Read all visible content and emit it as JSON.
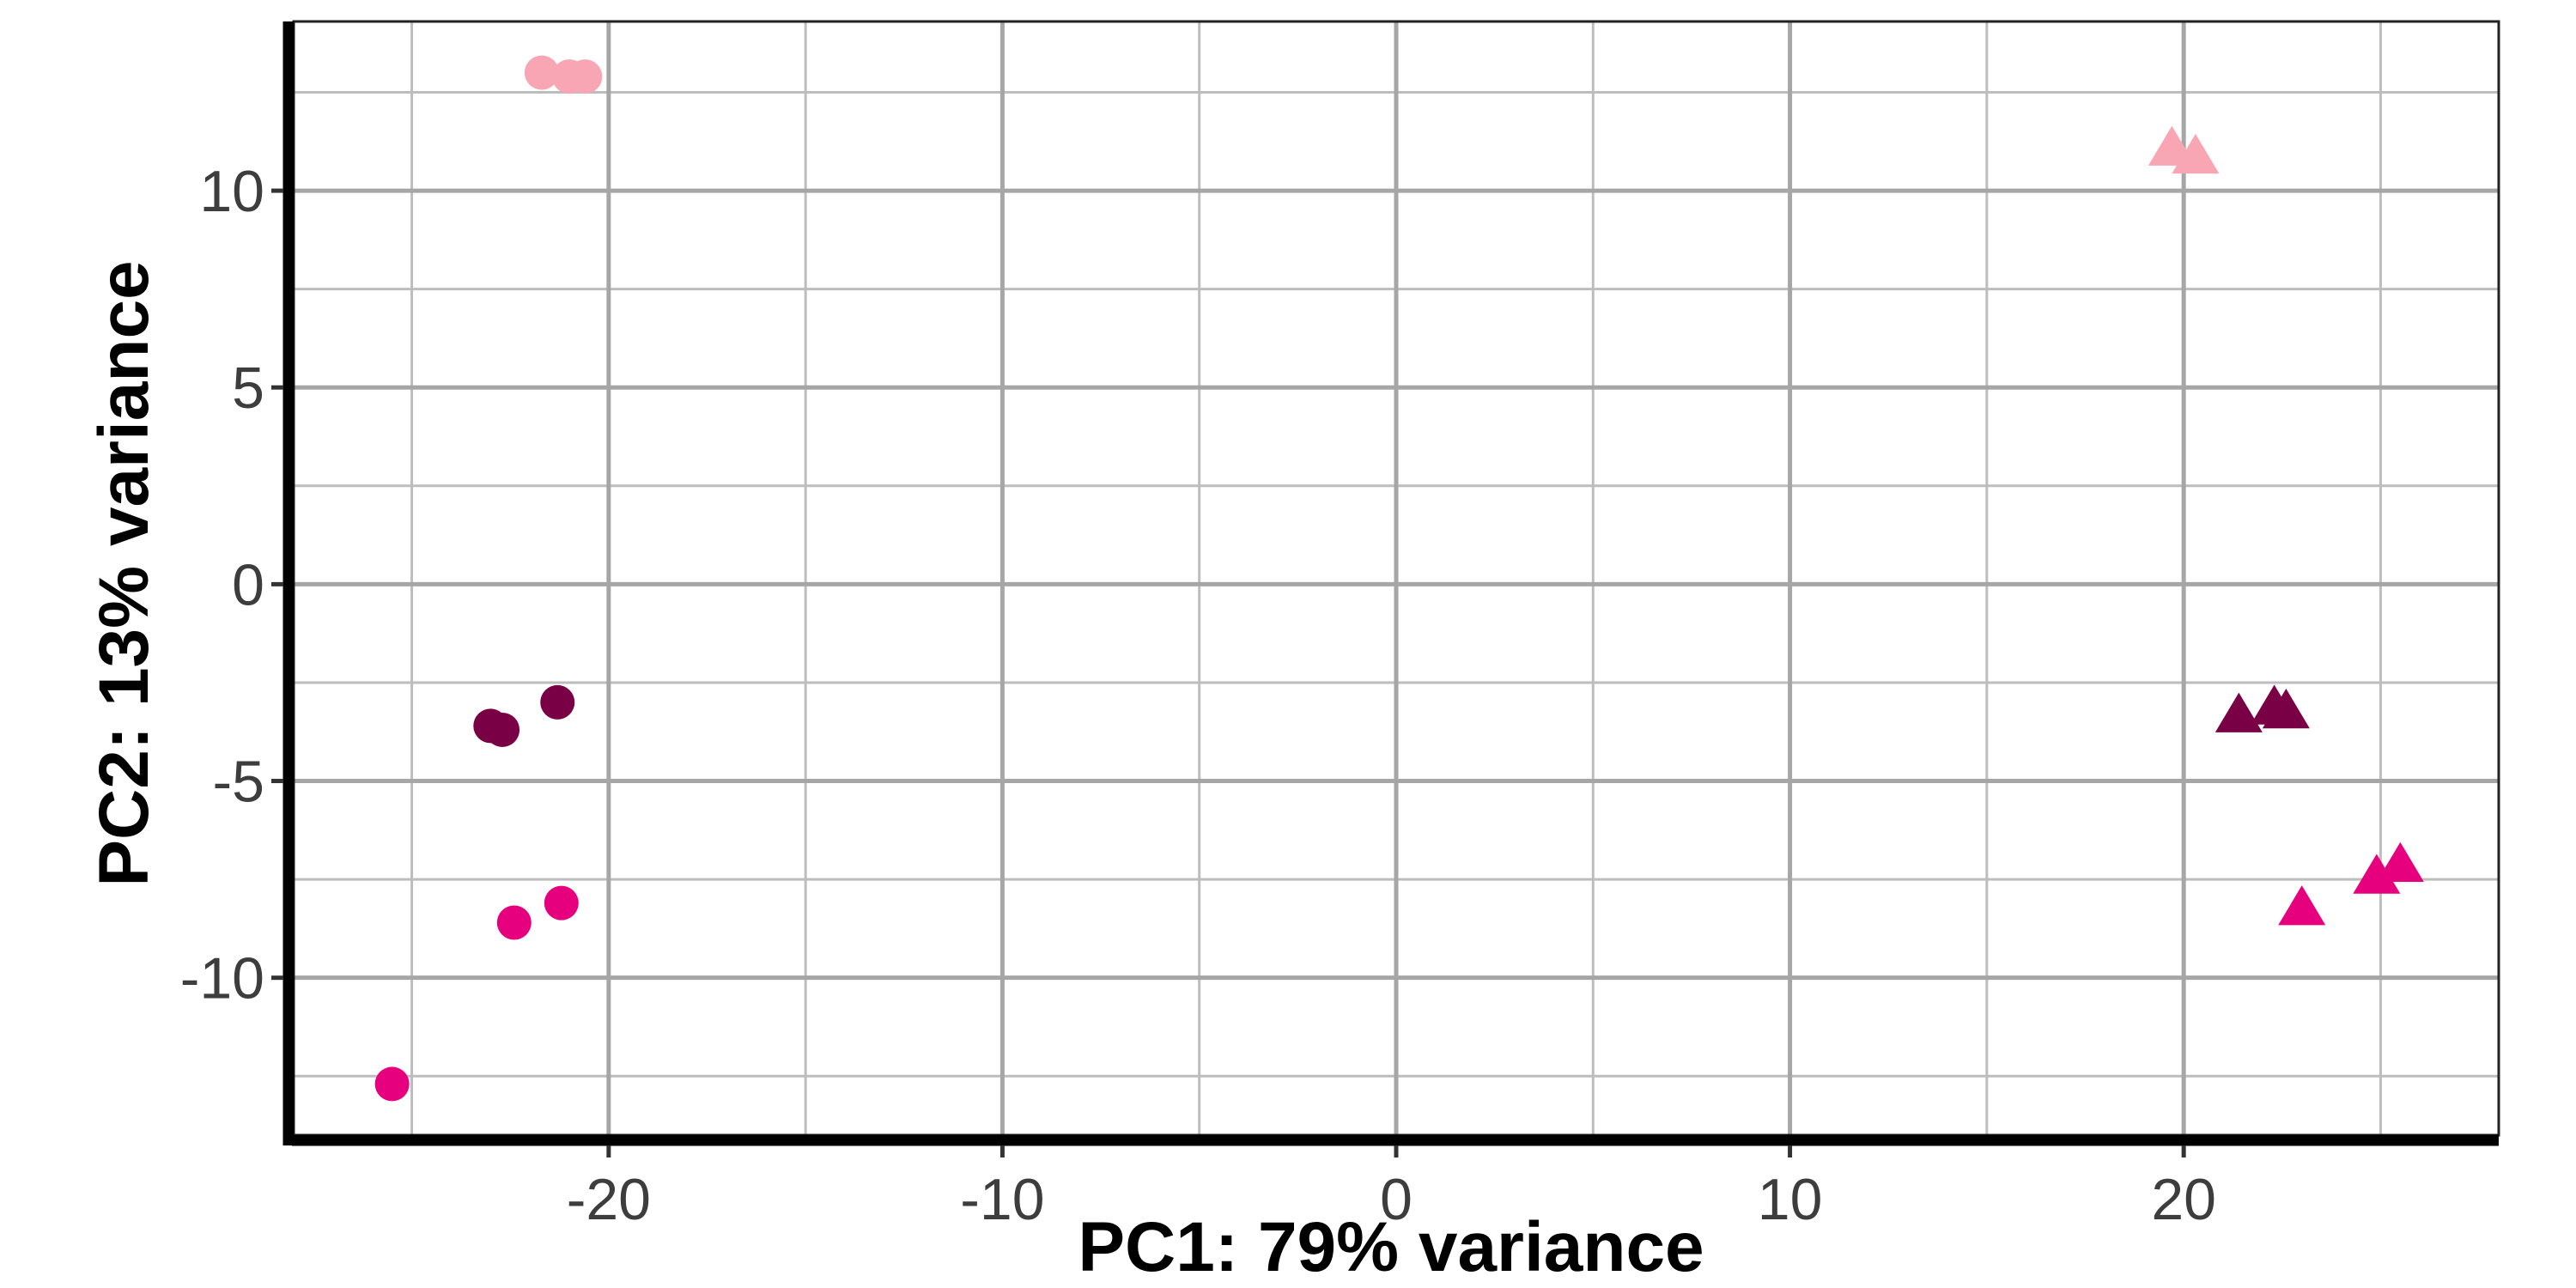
{
  "chart_data": {
    "type": "scatter",
    "title": "",
    "xlabel": "PC1: 79% variance",
    "ylabel": "PC2: 13% variance",
    "xlim": [
      -28,
      28
    ],
    "ylim": [
      -14,
      14.3
    ],
    "x_ticks": [
      -20,
      -10,
      0,
      10,
      20
    ],
    "x_tick_labels": [
      "-20",
      "-10",
      "0",
      "10",
      "20"
    ],
    "y_ticks": [
      -10,
      -5,
      0,
      5,
      10
    ],
    "y_tick_labels": [
      "-10",
      "-5",
      "0",
      "5",
      "10"
    ],
    "grid": true,
    "legend": "none",
    "colors": {
      "light_pink": "#f8a6b4",
      "dark_maroon": "#7a0045",
      "magenta": "#e6007e",
      "grid_major": "#a6a6a6",
      "grid_minor": "#bdbdbd",
      "axis_line": "#000000"
    },
    "series": [
      {
        "shape": "circle",
        "color": "#f8a6b4",
        "points": [
          [
            -21.7,
            13.0
          ],
          [
            -21.0,
            12.9
          ],
          [
            -20.6,
            12.9
          ]
        ]
      },
      {
        "shape": "circle",
        "color": "#7a0045",
        "points": [
          [
            -23.0,
            -3.6
          ],
          [
            -22.7,
            -3.7
          ],
          [
            -21.3,
            -3.0
          ]
        ]
      },
      {
        "shape": "circle",
        "color": "#e6007e",
        "points": [
          [
            -22.4,
            -8.6
          ],
          [
            -21.2,
            -8.1
          ],
          [
            -25.5,
            -12.7
          ]
        ]
      },
      {
        "shape": "triangle",
        "color": "#f8a6b4",
        "points": [
          [
            19.7,
            11.1
          ],
          [
            20.3,
            10.9
          ]
        ]
      },
      {
        "shape": "triangle",
        "color": "#7a0045",
        "points": [
          [
            21.4,
            -3.3
          ],
          [
            22.3,
            -3.1
          ],
          [
            22.6,
            -3.2
          ]
        ]
      },
      {
        "shape": "triangle",
        "color": "#e6007e",
        "points": [
          [
            23.0,
            -8.2
          ],
          [
            24.9,
            -7.4
          ],
          [
            25.5,
            -7.1
          ]
        ]
      }
    ]
  }
}
